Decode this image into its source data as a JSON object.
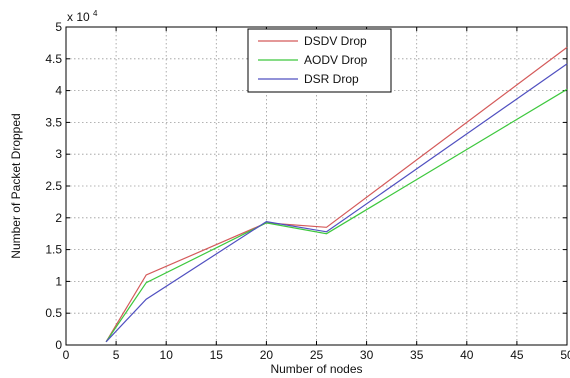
{
  "chart_data": {
    "type": "line",
    "xlabel": "Number of nodes",
    "ylabel": "Number of Packet Dropped",
    "y_multiplier_label": "x 10",
    "y_multiplier_exponent": "4",
    "xlim": [
      0,
      50
    ],
    "ylim": [
      0,
      5
    ],
    "xticks": [
      0,
      5,
      10,
      15,
      20,
      25,
      30,
      35,
      40,
      45,
      50
    ],
    "yticks": [
      0,
      0.5,
      1,
      1.5,
      2,
      2.5,
      3,
      3.5,
      4,
      4.5,
      5
    ],
    "xtick_labels": [
      "0",
      "5",
      "10",
      "15",
      "20",
      "25",
      "30",
      "35",
      "40",
      "45",
      "50"
    ],
    "ytick_labels": [
      "0",
      "0.5",
      "1",
      "1.5",
      "2",
      "2.5",
      "3",
      "3.5",
      "4",
      "4.5",
      "5"
    ],
    "grid": true,
    "legend_position": "top-center",
    "x": [
      4,
      8,
      20,
      26,
      50
    ],
    "series": [
      {
        "name": "DSDV Drop",
        "color": "#d45a5a",
        "values": [
          0.05,
          1.1,
          1.92,
          1.85,
          4.68
        ]
      },
      {
        "name": "AODV Drop",
        "color": "#3ec83e",
        "values": [
          0.05,
          0.98,
          1.92,
          1.75,
          4.02
        ]
      },
      {
        "name": "DSR Drop",
        "color": "#5050c0",
        "values": [
          0.05,
          0.72,
          1.94,
          1.78,
          4.42
        ]
      }
    ]
  }
}
